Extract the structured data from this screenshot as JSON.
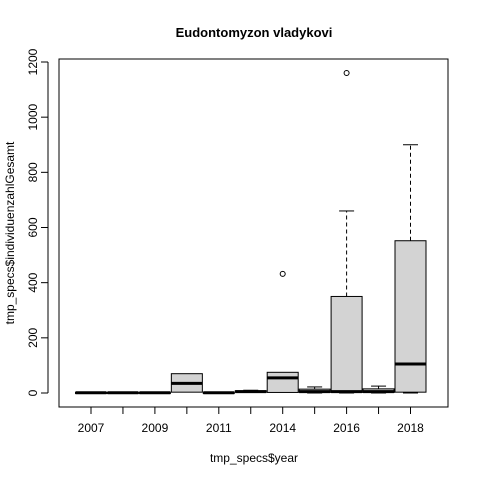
{
  "chart_data": {
    "type": "boxplot",
    "title": "Eudontomyzon vladykovi",
    "xlabel": "tmp_specs$year",
    "ylabel": "tmp_specs$individuenzahlGesamt",
    "ylim": [
      0,
      1200
    ],
    "y_ticks": [
      0,
      200,
      400,
      600,
      800,
      1000,
      1200
    ],
    "categories": [
      "2007",
      "2008",
      "2009",
      "2010",
      "2011",
      "2013",
      "2014",
      "2015",
      "2016",
      "2017",
      "2018"
    ],
    "x_tick_labels": [
      "2007",
      "",
      "2009",
      "",
      "2011",
      "",
      "2014",
      "",
      "2016",
      "",
      "2018"
    ],
    "box_fill": "#d3d3d3",
    "boxes": [
      {
        "min": 0,
        "q1": 0,
        "median": 1,
        "q3": 2,
        "max": 2,
        "outliers": []
      },
      {
        "min": 0,
        "q1": 0,
        "median": 1,
        "q3": 2,
        "max": 2,
        "outliers": []
      },
      {
        "min": 0,
        "q1": 0,
        "median": 1,
        "q3": 2,
        "max": 2,
        "outliers": []
      },
      {
        "min": 3,
        "q1": 3,
        "median": 35,
        "q3": 70,
        "max": 70,
        "outliers": []
      },
      {
        "min": 0,
        "q1": 0,
        "median": 1,
        "q3": 2,
        "max": 2,
        "outliers": []
      },
      {
        "min": 2,
        "q1": 3,
        "median": 5,
        "q3": 8,
        "max": 10,
        "outliers": []
      },
      {
        "min": 2,
        "q1": 2,
        "median": 55,
        "q3": 75,
        "max": 75,
        "outliers": [
          432
        ]
      },
      {
        "min": 0,
        "q1": 2,
        "median": 5,
        "q3": 14,
        "max": 22,
        "outliers": []
      },
      {
        "min": 0,
        "q1": 2,
        "median": 5,
        "q3": 350,
        "max": 660,
        "outliers": [
          1160
        ]
      },
      {
        "min": 0,
        "q1": 2,
        "median": 5,
        "q3": 15,
        "max": 25,
        "outliers": []
      },
      {
        "min": 0,
        "q1": 3,
        "median": 105,
        "q3": 552,
        "max": 900,
        "outliers": []
      }
    ]
  }
}
